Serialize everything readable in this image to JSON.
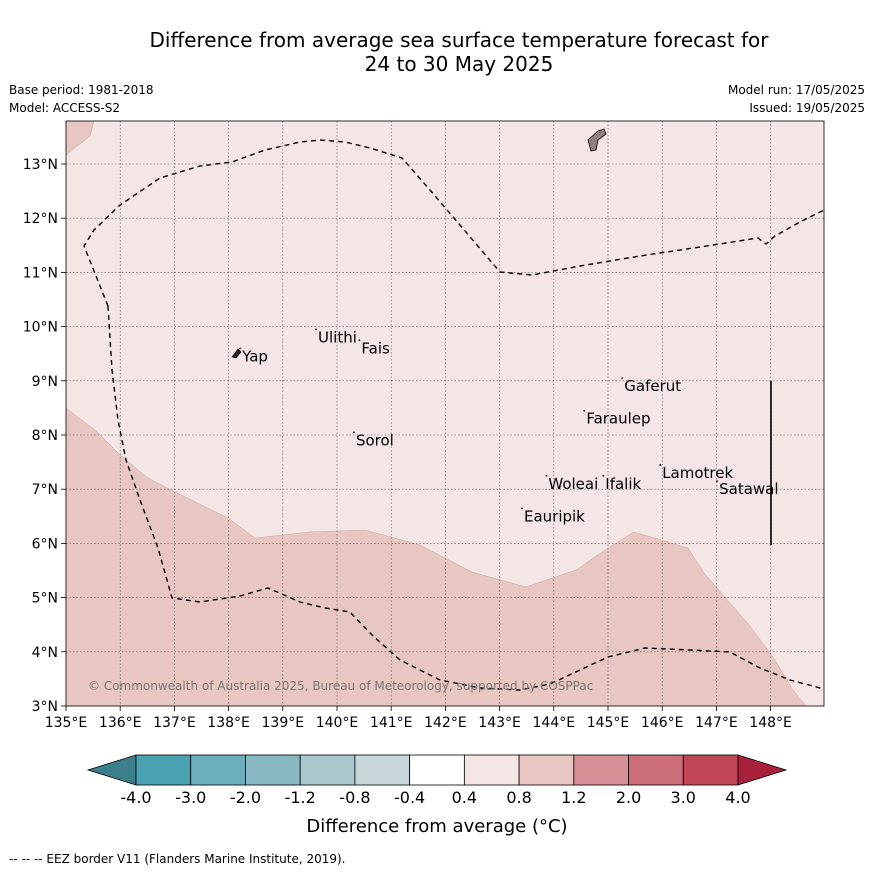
{
  "title": {
    "line1": "Difference from average sea surface temperature forecast for",
    "line2": "24 to 30 May 2025"
  },
  "meta": {
    "base_period": "Base period: 1981-2018",
    "model": "Model: ACCESS-S2",
    "model_run": "Model run: 17/05/2025",
    "issued": "Issued: 19/05/2025"
  },
  "map": {
    "lon_range": [
      135,
      149
    ],
    "lat_range": [
      3,
      13.8
    ],
    "lon_ticks": [
      "135°E",
      "136°E",
      "137°E",
      "138°E",
      "139°E",
      "140°E",
      "141°E",
      "142°E",
      "143°E",
      "144°E",
      "145°E",
      "146°E",
      "147°E",
      "148°E"
    ],
    "lat_ticks": [
      "3°N",
      "4°N",
      "5°N",
      "6°N",
      "7°N",
      "8°N",
      "9°N",
      "10°N",
      "11°N",
      "12°N",
      "13°N"
    ],
    "places": [
      {
        "name": "Yap",
        "lon": 138.25,
        "lat": 9.45
      },
      {
        "name": "Ulithi",
        "lon": 139.65,
        "lat": 9.8
      },
      {
        "name": "Fais",
        "lon": 140.45,
        "lat": 9.6
      },
      {
        "name": "Gaferut",
        "lon": 145.3,
        "lat": 8.9
      },
      {
        "name": "Faraulep",
        "lon": 144.6,
        "lat": 8.3
      },
      {
        "name": "Sorol",
        "lon": 140.35,
        "lat": 7.9
      },
      {
        "name": "Woleai",
        "lon": 143.9,
        "lat": 7.1
      },
      {
        "name": "Ifalik",
        "lon": 144.95,
        "lat": 7.1
      },
      {
        "name": "Lamotrek",
        "lon": 146.0,
        "lat": 7.3
      },
      {
        "name": "Satawal",
        "lon": 147.05,
        "lat": 7.0
      },
      {
        "name": "Eauripik",
        "lon": 143.45,
        "lat": 6.5
      }
    ],
    "copyright": "© Commonwealth of Australia 2025, Bureau of Meteorology, supported by COSPPac",
    "colors": {
      "band_0_4_0_8": "#f4e6e5",
      "band_0_8_1_2": "#e8c6c1",
      "land": "#8f7f7f"
    }
  },
  "colorbar": {
    "ticks": [
      "-4.0",
      "-3.0",
      "-2.0",
      "-1.2",
      "-0.8",
      "-0.4",
      "0.4",
      "0.8",
      "1.2",
      "2.0",
      "3.0",
      "4.0"
    ],
    "colors": [
      "#4aa3b3",
      "#6aaebb",
      "#88b8c2",
      "#a9c8cd",
      "#c8d8db",
      "#ffffff",
      "#f4e6e5",
      "#e8c6c1",
      "#d79096",
      "#cc6e78",
      "#c14656"
    ],
    "under_color": "#3a7f8a",
    "over_color": "#a8203c",
    "label": "Difference from average (°C)"
  },
  "footer": "-- -- -- EEZ border V11 (Flanders Marine Institute, 2019)."
}
